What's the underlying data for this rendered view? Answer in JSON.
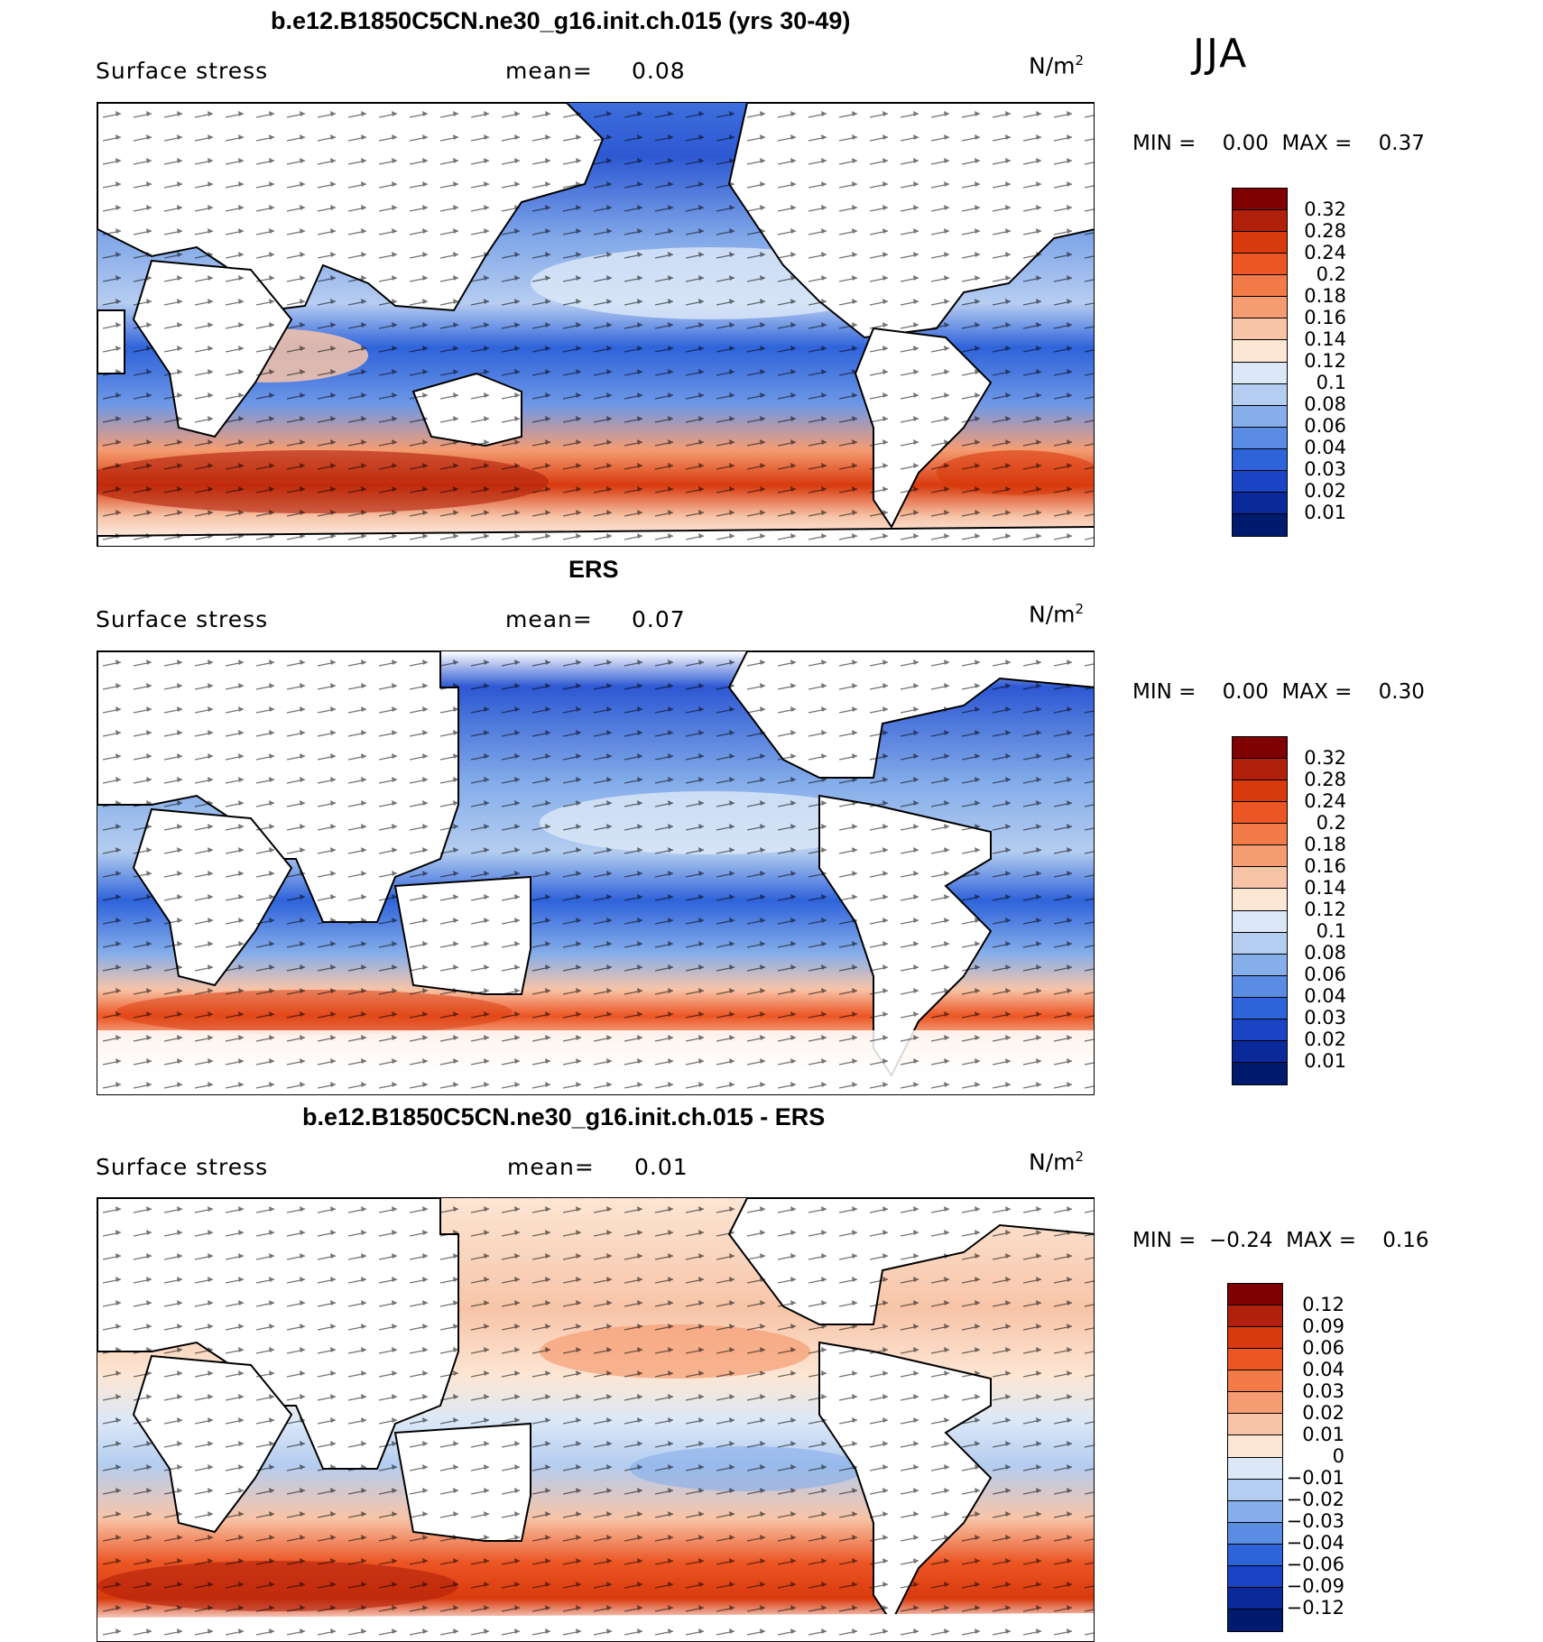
{
  "season": "JJA",
  "panels": [
    {
      "title": "b.e12.B1850C5CN.ne30_g16.init.ch.015 (yrs 30-49)",
      "label": "Surface stress",
      "mean_label": "mean=",
      "mean_value": "0.08",
      "units": "N/m",
      "units_sup": "2",
      "minmax": "MIN =    0.00  MAX =    0.37",
      "colorbar_ticks": [
        "0.32",
        "0.28",
        "0.24",
        "0.2",
        "0.18",
        "0.16",
        "0.14",
        "0.12",
        "0.1",
        "0.08",
        "0.06",
        "0.04",
        "0.03",
        "0.02",
        "0.01"
      ]
    },
    {
      "title": "ERS",
      "label": "Surface stress",
      "mean_label": "mean=",
      "mean_value": "0.07",
      "units": "N/m",
      "units_sup": "2",
      "minmax": "MIN =    0.00  MAX =    0.30",
      "colorbar_ticks": [
        "0.32",
        "0.28",
        "0.24",
        "0.2",
        "0.18",
        "0.16",
        "0.14",
        "0.12",
        "0.1",
        "0.08",
        "0.06",
        "0.04",
        "0.03",
        "0.02",
        "0.01"
      ]
    },
    {
      "title": "b.e12.B1850C5CN.ne30_g16.init.ch.015 - ERS",
      "label": "Surface stress",
      "mean_label": "mean=",
      "mean_value": "0.01",
      "units": "N/m",
      "units_sup": "2",
      "minmax": "MIN =  −0.24  MAX =    0.16",
      "colorbar_ticks": [
        "0.12",
        "0.09",
        "0.06",
        "0.04",
        "0.03",
        "0.02",
        "0.01",
        "0",
        "−0.01",
        "−0.02",
        "−0.03",
        "−0.04",
        "−0.06",
        "−0.09",
        "−0.12"
      ]
    }
  ],
  "colors": {
    "abs_scale": [
      "#7f0000",
      "#b0200a",
      "#d83a0d",
      "#ec5524",
      "#f27b48",
      "#f59c72",
      "#f7c4a8",
      "#fce6d4",
      "#dce8f7",
      "#b4cdf0",
      "#86aeea",
      "#5a8ce4",
      "#2f63da",
      "#1a44c4",
      "#0a2a9c",
      "#001a6e"
    ],
    "diff_scale": [
      "#7f0000",
      "#b0200a",
      "#d83a0d",
      "#ec5524",
      "#f27b48",
      "#f59c72",
      "#f7c4a8",
      "#fce6d4",
      "#dce8f7",
      "#b4cdf0",
      "#86aeea",
      "#5a8ce4",
      "#2f63da",
      "#1a44c4",
      "#0a2a9c",
      "#001a6e"
    ]
  }
}
